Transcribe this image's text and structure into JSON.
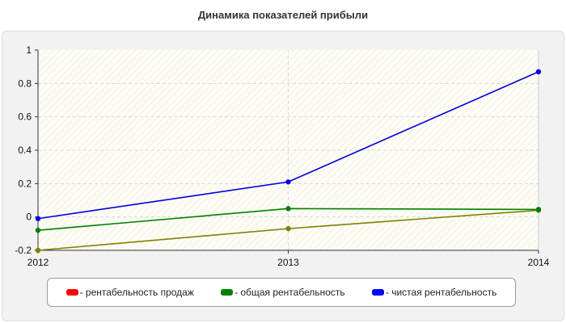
{
  "chart_data": {
    "type": "line",
    "title": "Динамика показателей прибыли",
    "categories": [
      "2012",
      "2013",
      "2014"
    ],
    "ylim": [
      -0.2,
      1
    ],
    "yticks": [
      "-0.2",
      "0",
      "0.2",
      "0.4",
      "0.6",
      "0.8",
      "1"
    ],
    "grid": true,
    "legend_position": "bottom",
    "series": [
      {
        "name": "- рентабельность продаж",
        "color": "#808000",
        "legend_color": "#ff0000",
        "values": [
          -0.2,
          -0.07,
          0.04
        ]
      },
      {
        "name": "- общая рентабельность",
        "color": "#008000",
        "legend_color": "#008000",
        "values": [
          -0.08,
          0.05,
          0.045
        ]
      },
      {
        "name": "- чистая рентабельность",
        "color": "#0000dd",
        "legend_color": "#0000ff",
        "values": [
          -0.01,
          0.21,
          0.87
        ]
      }
    ]
  }
}
